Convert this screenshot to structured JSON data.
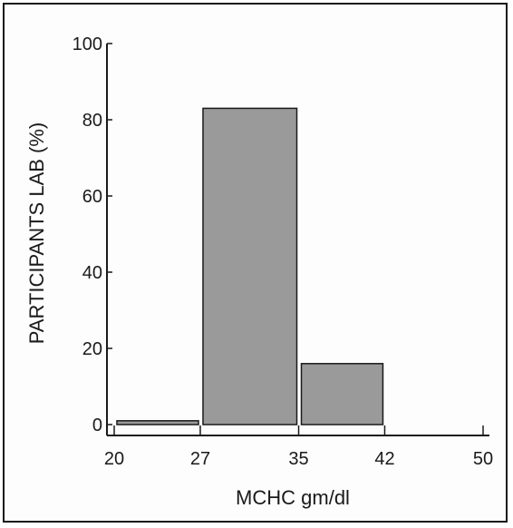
{
  "chart_data": {
    "type": "bar",
    "xlabel": "MCHC gm/dl",
    "ylabel": "PARTICIPANTS LAB (%)",
    "ylim": [
      0,
      100
    ],
    "yticks": [
      0,
      20,
      40,
      60,
      80,
      100
    ],
    "xticks": [
      20,
      27,
      35,
      42,
      50
    ],
    "bins": [
      {
        "range": [
          20,
          27
        ],
        "value": 1
      },
      {
        "range": [
          27,
          35
        ],
        "value": 83
      },
      {
        "range": [
          35,
          42
        ],
        "value": 16
      }
    ],
    "bar_color": "#9a9a9a",
    "grid": false
  }
}
